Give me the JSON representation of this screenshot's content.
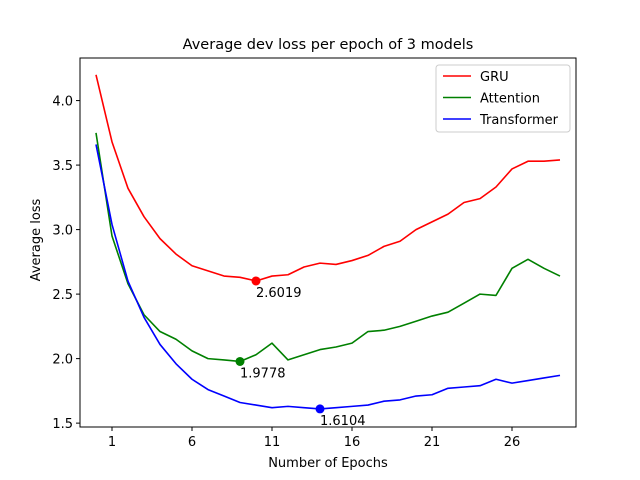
{
  "chart_data": {
    "type": "line",
    "title": "Average dev loss per epoch of 3 models",
    "xlabel": "Number of Epochs",
    "ylabel": "Average loss",
    "xlim": [
      -1.0,
      30.0
    ],
    "ylim": [
      1.47,
      4.33
    ],
    "xticks": [
      1,
      6,
      11,
      16,
      21,
      26
    ],
    "yticks": [
      1.5,
      2.0,
      2.5,
      3.0,
      3.5,
      4.0
    ],
    "ytick_labels": [
      "1.5",
      "2.0",
      "2.5",
      "3.0",
      "3.5",
      "4.0"
    ],
    "grid": false,
    "legend_position": "top-right",
    "x": [
      0,
      1,
      2,
      3,
      4,
      5,
      6,
      7,
      8,
      9,
      10,
      11,
      12,
      13,
      14,
      15,
      16,
      17,
      18,
      19,
      20,
      21,
      22,
      23,
      24,
      25,
      26,
      27,
      28,
      29
    ],
    "series": [
      {
        "name": "GRU",
        "color": "#ff0000",
        "values": [
          4.2,
          3.68,
          3.32,
          3.1,
          2.93,
          2.81,
          2.72,
          2.68,
          2.64,
          2.63,
          2.6019,
          2.64,
          2.65,
          2.71,
          2.74,
          2.73,
          2.76,
          2.8,
          2.87,
          2.91,
          3.0,
          3.06,
          3.12,
          3.21,
          3.24,
          3.33,
          3.47,
          3.53,
          3.53,
          3.54
        ]
      },
      {
        "name": "Attention",
        "color": "#008000",
        "values": [
          3.75,
          2.95,
          2.58,
          2.34,
          2.21,
          2.15,
          2.06,
          2.0,
          1.99,
          1.9778,
          2.03,
          2.12,
          1.99,
          2.03,
          2.07,
          2.09,
          2.12,
          2.21,
          2.22,
          2.25,
          2.29,
          2.33,
          2.36,
          2.43,
          2.5,
          2.49,
          2.7,
          2.77,
          2.7,
          2.64
        ]
      },
      {
        "name": "Transformer",
        "color": "#0000ff",
        "values": [
          3.66,
          3.04,
          2.6,
          2.32,
          2.11,
          1.96,
          1.84,
          1.76,
          1.71,
          1.66,
          1.64,
          1.62,
          1.63,
          1.62,
          1.6104,
          1.62,
          1.63,
          1.64,
          1.67,
          1.68,
          1.71,
          1.72,
          1.77,
          1.78,
          1.79,
          1.84,
          1.81,
          1.83,
          1.85,
          1.87
        ]
      }
    ],
    "annotations": [
      {
        "x": 10,
        "y": 2.6019,
        "text": "2.6019",
        "color": "#ff0000"
      },
      {
        "x": 9,
        "y": 1.9778,
        "text": "1.9778",
        "color": "#008000"
      },
      {
        "x": 14,
        "y": 1.6104,
        "text": "1.6104",
        "color": "#0000ff"
      }
    ]
  }
}
